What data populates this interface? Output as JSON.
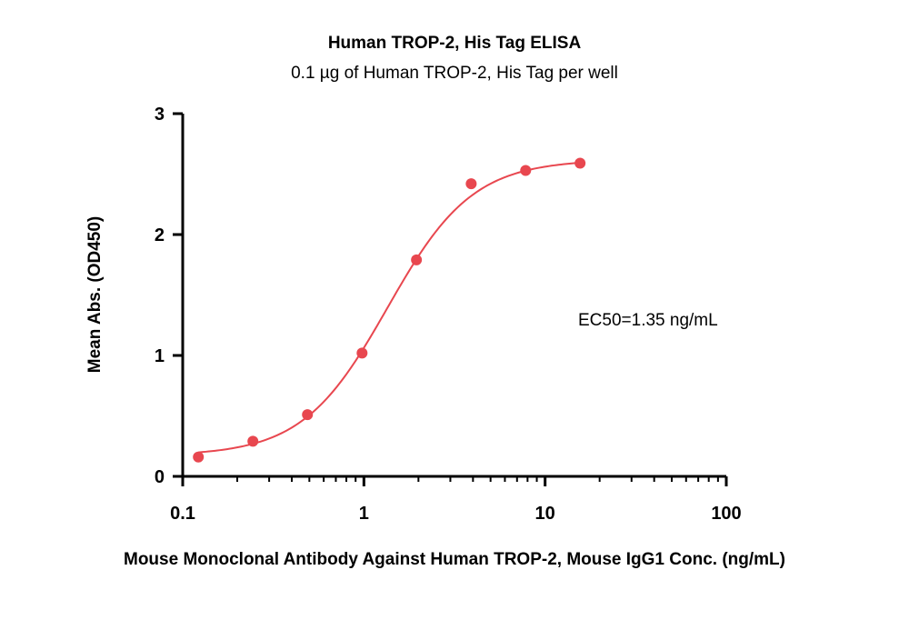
{
  "chart_data": {
    "type": "scatter",
    "title": "Human TROP-2, His Tag ELISA",
    "subtitle": "0.1 µg of Human TROP-2, His Tag per well",
    "xlabel": "Mouse Monoclonal Antibody Against Human TROP-2, Mouse IgG1 Conc. (ng/mL)",
    "ylabel": "Mean Abs. (OD450)",
    "x_scale": "log",
    "xlim": [
      0.1,
      100
    ],
    "ylim": [
      0,
      3
    ],
    "x_ticks": [
      "0.1",
      "1",
      "10",
      "100"
    ],
    "y_ticks": [
      "0",
      "1",
      "2",
      "3"
    ],
    "annotation": "EC50=1.35 ng/mL",
    "color": "#e8474f",
    "grid": false,
    "points": [
      {
        "x": 0.122,
        "y": 0.16
      },
      {
        "x": 0.244,
        "y": 0.29
      },
      {
        "x": 0.488,
        "y": 0.51
      },
      {
        "x": 0.977,
        "y": 1.02
      },
      {
        "x": 1.95,
        "y": 1.79
      },
      {
        "x": 3.91,
        "y": 2.42
      },
      {
        "x": 7.81,
        "y": 2.53
      },
      {
        "x": 15.6,
        "y": 2.59
      }
    ],
    "fit": {
      "model": "4PL",
      "bottom": 0.17,
      "top": 2.62,
      "ec50": 1.35,
      "hill": 1.85
    }
  }
}
